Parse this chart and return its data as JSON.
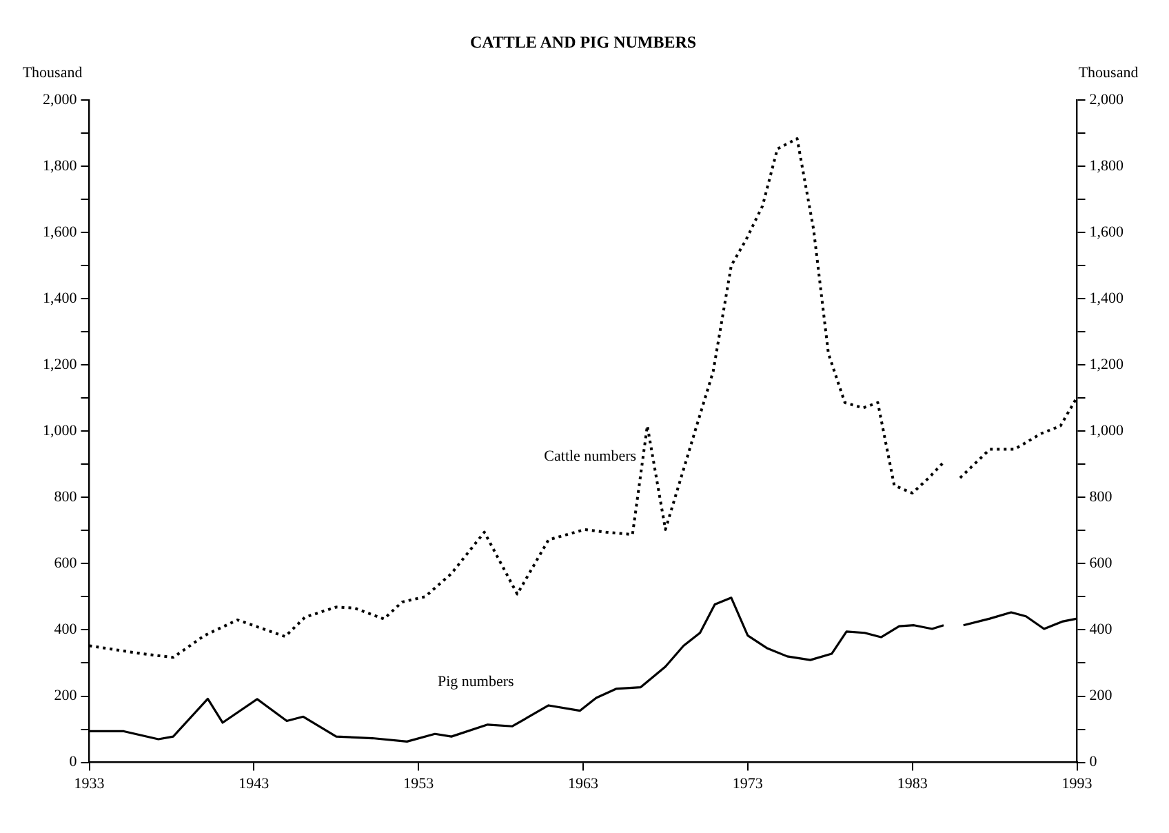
{
  "chart_data": {
    "type": "line",
    "title": "CATTLE AND PIG NUMBERS",
    "ylabel": "Thousand",
    "y2label": "Thousand",
    "xlim": [
      1933,
      1993
    ],
    "xticks": [
      1933,
      1943,
      1953,
      1963,
      1973,
      1983,
      1993
    ],
    "ylim": [
      0,
      2000
    ],
    "yticks": [
      0,
      {
        "value": 100,
        "label": null
      },
      200,
      {
        "value": 300,
        "label": null
      },
      400,
      {
        "value": 500,
        "label": null
      },
      600,
      {
        "value": 700,
        "label": null
      },
      800,
      {
        "value": 900,
        "label": null
      },
      {
        "value": 1000,
        "label": "1,000"
      },
      {
        "value": 1100,
        "label": null
      },
      {
        "value": 1200,
        "label": "1,200"
      },
      {
        "value": 1300,
        "label": null
      },
      {
        "value": 1400,
        "label": "1,400"
      },
      {
        "value": 1500,
        "label": null
      },
      {
        "value": 1600,
        "label": "1,600"
      },
      {
        "value": 1700,
        "label": null
      },
      {
        "value": 1800,
        "label": "1,800"
      },
      {
        "value": 1900,
        "label": null
      },
      {
        "value": 2000,
        "label": "2,000"
      }
    ],
    "y2lim": [
      0,
      2000
    ],
    "y2ticks": [
      0,
      {
        "value": 100,
        "label": null
      },
      200,
      {
        "value": 300,
        "label": null
      },
      400,
      {
        "value": 500,
        "label": null
      },
      600,
      {
        "value": 700,
        "label": null
      },
      800,
      {
        "value": 900,
        "label": null
      },
      {
        "value": 1000,
        "label": "1,000"
      },
      {
        "value": 1100,
        "label": null
      },
      {
        "value": 1200,
        "label": "1,200"
      },
      {
        "value": 1300,
        "label": null
      },
      {
        "value": 1400,
        "label": "1,400"
      },
      {
        "value": 1500,
        "label": null
      },
      {
        "value": 1600,
        "label": "1,600"
      },
      {
        "value": 1700,
        "label": null
      },
      {
        "value": 1800,
        "label": "1,800"
      },
      {
        "value": 1900,
        "label": null
      },
      {
        "value": 2000,
        "label": "2,000"
      }
    ],
    "grid": false,
    "legend": false,
    "marker": "none",
    "series": [
      {
        "name": "Cattle numbers",
        "color": "#000000",
        "line_style": "dotted",
        "x": [
          1933,
          1936.2,
          1938.1,
          1940,
          1942,
          1944.9,
          1946.1,
          1948,
          1949.1,
          1950.9,
          1952,
          1953.4,
          1955,
          1957,
          1959,
          1960.9,
          1963.1,
          1964.4,
          1966,
          1966.9,
          1968,
          1969.8,
          1970.9,
          1972,
          1972.9,
          1973.9,
          1974.8,
          1976,
          1977,
          1977.9,
          1978.9,
          1980,
          1980.9,
          1981.9,
          1983,
          1984,
          1984.9,
          1985.4,
          1985.9,
          1987.7,
          1989.2,
          1990.8,
          1992,
          1993
        ],
        "values": [
          352,
          328,
          317,
          383,
          430,
          380,
          438,
          469,
          466,
          433,
          484,
          500,
          570,
          695,
          508,
          672,
          703,
          695,
          688,
          1016,
          703,
          1000,
          1180,
          1500,
          1578,
          1680,
          1852,
          1883,
          1609,
          1234,
          1086,
          1070,
          1086,
          836,
          813,
          859,
          906,
          null,
          859,
          945,
          945,
          992,
          1016,
          1102
        ]
      },
      {
        "name": "Pig numbers",
        "color": "#000000",
        "line_style": "solid",
        "x": [
          1933,
          1935.1,
          1937.2,
          1938.1,
          1940.2,
          1941.1,
          1943.2,
          1945,
          1946,
          1948,
          1950.2,
          1952.3,
          1954,
          1955,
          1957.2,
          1958.7,
          1960.9,
          1962.8,
          1963.8,
          1965,
          1966.5,
          1968,
          1969.1,
          1970.1,
          1971,
          1972,
          1973,
          1974.2,
          1975.4,
          1976.8,
          1978.1,
          1979,
          1980.1,
          1981.1,
          1982.2,
          1983.1,
          1984.2,
          1984.9,
          1985.5,
          1986.1,
          1987.7,
          1989,
          1989.9,
          1991,
          1992.1,
          1993
        ],
        "values": [
          94,
          94,
          70,
          78,
          192,
          120,
          191,
          125,
          138,
          78,
          73,
          63,
          86,
          78,
          114,
          109,
          172,
          156,
          195,
          222,
          227,
          289,
          352,
          391,
          477,
          497,
          383,
          344,
          320,
          309,
          328,
          395,
          391,
          378,
          411,
          414,
          403,
          414,
          null,
          414,
          434,
          453,
          441,
          403,
          425,
          434
        ]
      }
    ]
  }
}
